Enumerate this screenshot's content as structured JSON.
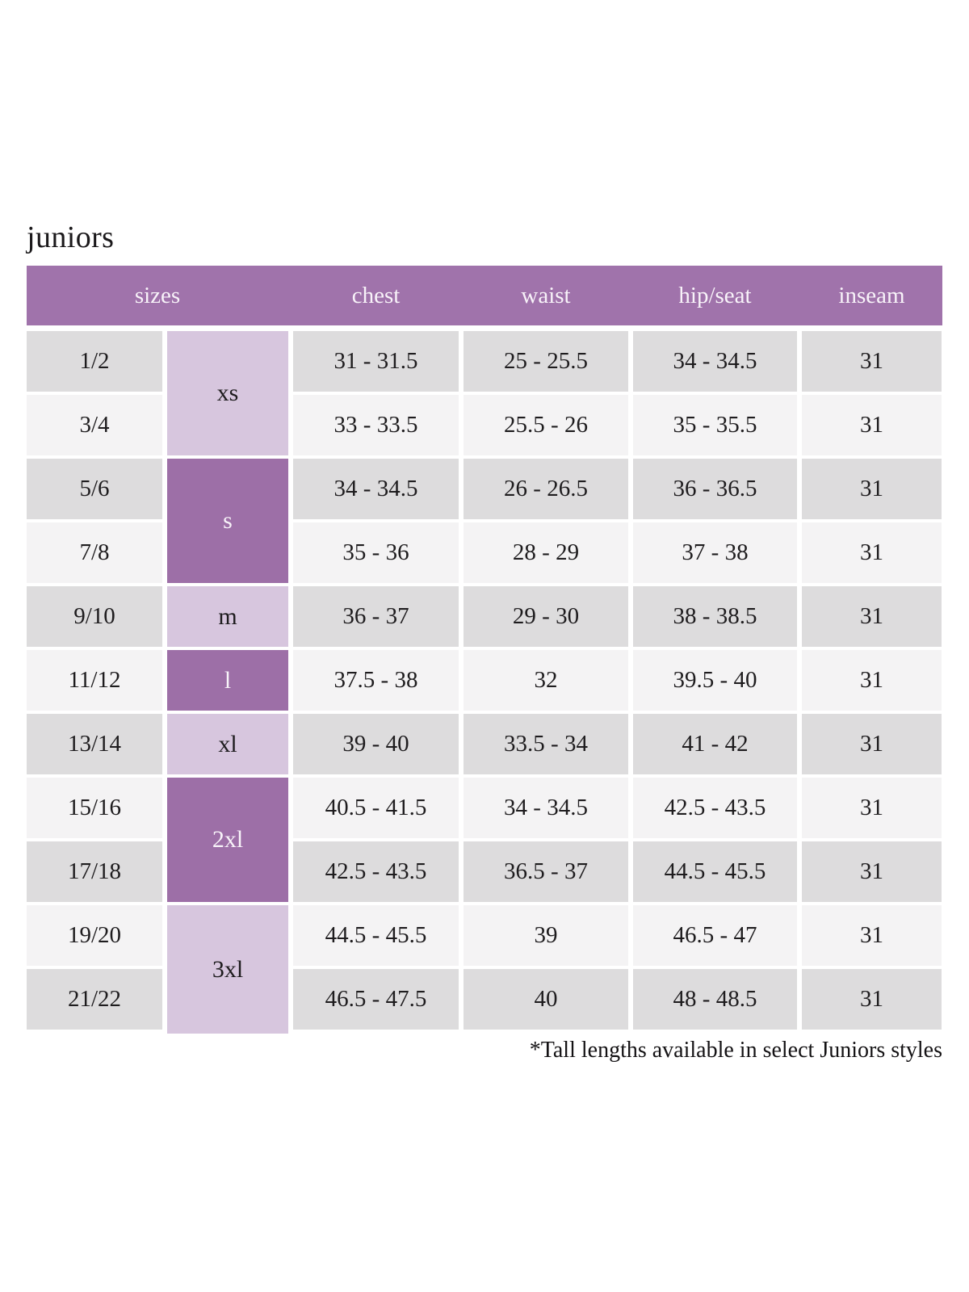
{
  "page": {
    "title": "juniors",
    "footnote": "*Tall lengths available in select Juniors styles"
  },
  "colors": {
    "header_bg": "#A073AB",
    "header_text": "#F8F3F9",
    "letter_dark_bg": "#9D6FA7",
    "letter_light_bg": "#D7C6DE",
    "row_dark_bg": "#DDDCDD",
    "row_light_bg": "#F4F3F4",
    "body_text": "#1E1C1E"
  },
  "table": {
    "columns": [
      "sizes",
      "chest",
      "waist",
      "hip/seat",
      "inseam"
    ],
    "size_groups": [
      {
        "label": "xs",
        "rows": [
          0,
          1
        ],
        "shade": "light"
      },
      {
        "label": "s",
        "rows": [
          2,
          3
        ],
        "shade": "dark"
      },
      {
        "label": "m",
        "rows": [
          4
        ],
        "shade": "light"
      },
      {
        "label": "l",
        "rows": [
          5
        ],
        "shade": "dark"
      },
      {
        "label": "xl",
        "rows": [
          6
        ],
        "shade": "light"
      },
      {
        "label": "2xl",
        "rows": [
          7,
          8
        ],
        "shade": "dark"
      },
      {
        "label": "3xl",
        "rows": [
          9,
          10
        ],
        "shade": "light"
      }
    ],
    "rows": [
      {
        "size": "1/2",
        "chest": "31 - 31.5",
        "waist": "25 - 25.5",
        "hip_seat": "34 - 34.5",
        "inseam": "31"
      },
      {
        "size": "3/4",
        "chest": "33 - 33.5",
        "waist": "25.5 - 26",
        "hip_seat": "35 - 35.5",
        "inseam": "31"
      },
      {
        "size": "5/6",
        "chest": "34 - 34.5",
        "waist": "26 - 26.5",
        "hip_seat": "36 - 36.5",
        "inseam": "31"
      },
      {
        "size": "7/8",
        "chest": "35 - 36",
        "waist": "28 - 29",
        "hip_seat": "37 - 38",
        "inseam": "31"
      },
      {
        "size": "9/10",
        "chest": "36 - 37",
        "waist": "29 - 30",
        "hip_seat": "38 - 38.5",
        "inseam": "31"
      },
      {
        "size": "11/12",
        "chest": "37.5 - 38",
        "waist": "32",
        "hip_seat": "39.5 - 40",
        "inseam": "31"
      },
      {
        "size": "13/14",
        "chest": "39 - 40",
        "waist": "33.5 - 34",
        "hip_seat": "41 - 42",
        "inseam": "31"
      },
      {
        "size": "15/16",
        "chest": "40.5 - 41.5",
        "waist": "34 - 34.5",
        "hip_seat": "42.5 - 43.5",
        "inseam": "31"
      },
      {
        "size": "17/18",
        "chest": "42.5 - 43.5",
        "waist": "36.5 - 37",
        "hip_seat": "44.5 - 45.5",
        "inseam": "31"
      },
      {
        "size": "19/20",
        "chest": "44.5 - 45.5",
        "waist": "39",
        "hip_seat": "46.5 - 47",
        "inseam": "31"
      },
      {
        "size": "21/22",
        "chest": "46.5 - 47.5",
        "waist": "40",
        "hip_seat": "48 - 48.5",
        "inseam": "31"
      }
    ]
  },
  "chart_data": {
    "type": "table",
    "title": "juniors",
    "columns": [
      "sizes (numeric)",
      "sizes (letter)",
      "chest",
      "waist",
      "hip/seat",
      "inseam"
    ],
    "rows": [
      [
        "1/2",
        "xs",
        "31 - 31.5",
        "25 - 25.5",
        "34 - 34.5",
        "31"
      ],
      [
        "3/4",
        "xs",
        "33 - 33.5",
        "25.5 - 26",
        "35 - 35.5",
        "31"
      ],
      [
        "5/6",
        "s",
        "34 - 34.5",
        "26 - 26.5",
        "36 - 36.5",
        "31"
      ],
      [
        "7/8",
        "s",
        "35 - 36",
        "28 - 29",
        "37 - 38",
        "31"
      ],
      [
        "9/10",
        "m",
        "36 - 37",
        "29 - 30",
        "38 - 38.5",
        "31"
      ],
      [
        "11/12",
        "l",
        "37.5 - 38",
        "32",
        "39.5 - 40",
        "31"
      ],
      [
        "13/14",
        "xl",
        "39 - 40",
        "33.5 - 34",
        "41 - 42",
        "31"
      ],
      [
        "15/16",
        "2xl",
        "40.5 - 41.5",
        "34 - 34.5",
        "42.5 - 43.5",
        "31"
      ],
      [
        "17/18",
        "2xl",
        "42.5 - 43.5",
        "36.5 - 37",
        "44.5 - 45.5",
        "31"
      ],
      [
        "19/20",
        "3xl",
        "44.5 - 45.5",
        "39",
        "46.5 - 47",
        "31"
      ],
      [
        "21/22",
        "3xl",
        "46.5 - 47.5",
        "40",
        "48 - 48.5",
        "31"
      ]
    ],
    "footnote": "*Tall lengths available in select Juniors styles",
    "legend_position": "none",
    "grid": false
  }
}
